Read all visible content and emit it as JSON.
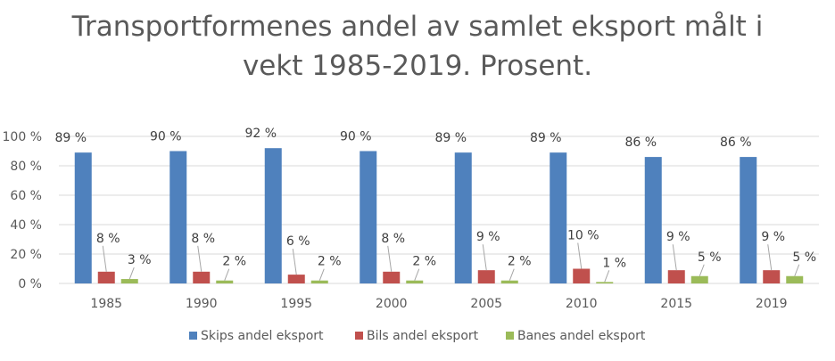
{
  "chart_data": {
    "type": "bar",
    "title_lines": [
      "Transportformenes andel av samlet eksport målt i",
      "vekt 1985-2019. Prosent."
    ],
    "categories": [
      "1985",
      "1990",
      "1995",
      "2000",
      "2005",
      "2010",
      "2015",
      "2019"
    ],
    "series": [
      {
        "name": "Skips andel eksport",
        "color": "#4f81bd",
        "values": [
          89,
          90,
          92,
          90,
          89,
          89,
          86,
          86
        ],
        "labels": [
          "89 %",
          "90 %",
          "92 %",
          "90 %",
          "89 %",
          "89 %",
          "86 %",
          "86 %"
        ]
      },
      {
        "name": "Bils andel eksport",
        "color": "#c0504d",
        "values": [
          8,
          8,
          6,
          8,
          9,
          10,
          9,
          9
        ],
        "labels": [
          "8 %",
          "8 %",
          "6 %",
          "8 %",
          "9 %",
          "10 %",
          "9 %",
          "9 %"
        ]
      },
      {
        "name": "Banes andel eksport",
        "color": "#9bbb59",
        "values": [
          3,
          2,
          2,
          2,
          2,
          1,
          5,
          5
        ],
        "labels": [
          "3 %",
          "2 %",
          "2 %",
          "2 %",
          "2 %",
          "1 %",
          "5 %",
          "5 %"
        ]
      }
    ],
    "yticks": [
      0,
      20,
      40,
      60,
      80,
      100
    ],
    "ytick_labels": [
      "0 %",
      "20 %",
      "40 %",
      "60 %",
      "80 %",
      "100 %"
    ],
    "ylim": [
      0,
      100
    ],
    "grid": true,
    "legend_position": "bottom"
  }
}
